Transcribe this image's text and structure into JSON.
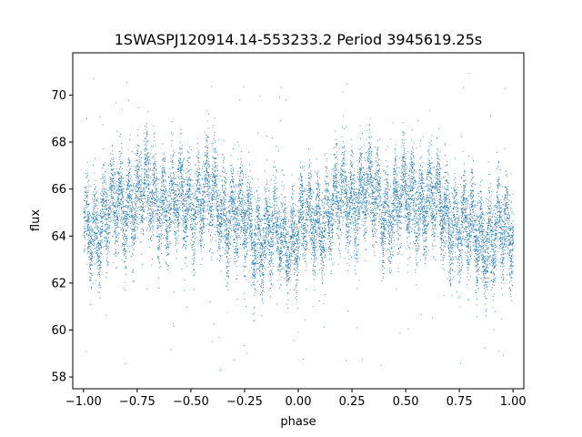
{
  "chart_data": {
    "type": "scatter",
    "title": "1SWASPJ120914.14-553233.2 Period 3945619.25s",
    "xlabel": "phase",
    "ylabel": "flux",
    "xlim": [
      -1.05,
      1.05
    ],
    "ylim": [
      57.5,
      71.8
    ],
    "xticks": [
      -1.0,
      -0.75,
      -0.5,
      -0.25,
      0.0,
      0.25,
      0.5,
      0.75,
      1.0
    ],
    "xtick_labels": [
      "−1.00",
      "−0.75",
      "−0.50",
      "−0.25",
      "0.00",
      "0.25",
      "0.50",
      "0.75",
      "1.00"
    ],
    "yticks": [
      58,
      60,
      62,
      64,
      66,
      68,
      70
    ],
    "ytick_labels": [
      "58",
      "60",
      "62",
      "64",
      "66",
      "68",
      "70"
    ],
    "grid": false,
    "marker_color": "#1f77b4",
    "series": [
      {
        "name": "",
        "phase_range": [
          -1.0,
          1.0
        ],
        "trend_profile": {
          "phase": [
            -1.0,
            -0.9,
            -0.8,
            -0.7,
            -0.6,
            -0.5,
            -0.4,
            -0.3,
            -0.2,
            -0.1,
            0.0,
            0.1,
            0.2,
            0.3,
            0.4,
            0.5,
            0.6,
            0.7,
            0.8,
            0.9,
            1.0
          ],
          "flux": [
            64.2,
            64.8,
            65.4,
            65.9,
            65.2,
            65.5,
            65.6,
            64.8,
            64.1,
            63.9,
            64.2,
            64.8,
            65.4,
            65.9,
            65.2,
            65.5,
            65.6,
            64.8,
            64.1,
            63.9,
            64.2
          ]
        },
        "scatter_sigma": 0.9,
        "point_count": 14000
      }
    ]
  }
}
